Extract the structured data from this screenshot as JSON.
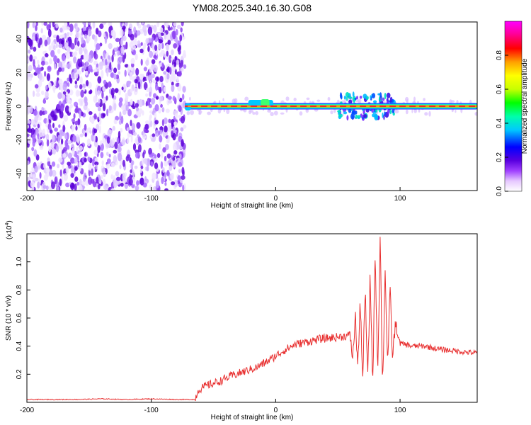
{
  "title": "YM08.2025.340.16.30.G08",
  "chart_data": [
    {
      "type": "heatmap",
      "title": "YM08.2025.340.16.30.G08",
      "xlabel": "Height of straight line (km)",
      "ylabel": "Frequency (Hz)",
      "xlim": [
        -200,
        162
      ],
      "ylim": [
        -50,
        50
      ],
      "x_ticks": [
        "-200",
        "-100",
        "0",
        "100"
      ],
      "x_tick_values": [
        -200,
        -100,
        0,
        100
      ],
      "y_ticks": [
        "-40",
        "-20",
        "0",
        "20",
        "40"
      ],
      "y_tick_values": [
        -40,
        -20,
        0,
        20,
        40
      ],
      "noise_region_x": [
        -200,
        -73
      ],
      "signal_line_frequency": 0,
      "signal_start_x": -73,
      "colorbar": {
        "label": "Normalized spectral amplitude",
        "range": [
          0,
          1
        ],
        "ticks": [
          "0.0",
          "0.2",
          "0.4",
          "0.6",
          "0.8"
        ],
        "tick_values": [
          0.0,
          0.2,
          0.4,
          0.6,
          0.8
        ],
        "colors": [
          "#ffffff",
          "#e6c8ff",
          "#a040ff",
          "#5a00e0",
          "#0000ff",
          "#00c8ff",
          "#00ffaa",
          "#00ff00",
          "#c8ff00",
          "#ffff00",
          "#ffa000",
          "#ff0000",
          "#ff00a0",
          "#ff00ff"
        ]
      }
    },
    {
      "type": "line",
      "xlabel": "Height of straight line (km)",
      "ylabel": "SNR (10 * v/v)",
      "y_multiplier": "(x10",
      "y_multiplier_exp": "4",
      "y_multiplier_close": ")",
      "xlim": [
        -200,
        162
      ],
      "ylim": [
        0,
        1.2
      ],
      "x_ticks": [
        "-200",
        "-100",
        "0",
        "100"
      ],
      "x_tick_values": [
        -200,
        -100,
        0,
        100
      ],
      "y_ticks": [
        "0.2",
        "0.4",
        "0.6",
        "0.8",
        "1.0"
      ],
      "y_tick_values": [
        0.2,
        0.4,
        0.6,
        0.8,
        1.0
      ],
      "line_color": "#e83030",
      "series": [
        {
          "name": "SNR",
          "x": [
            -200,
            -180,
            -160,
            -140,
            -120,
            -100,
            -80,
            -65,
            -62,
            -55,
            -45,
            -35,
            -25,
            -15,
            -5,
            5,
            15,
            25,
            35,
            45,
            55,
            60,
            62,
            64,
            66,
            68,
            70,
            72,
            74,
            76,
            78,
            80,
            82,
            84,
            86,
            88,
            90,
            92,
            94,
            96,
            100,
            110,
            120,
            130,
            140,
            150,
            162
          ],
          "values": [
            0.02,
            0.02,
            0.02,
            0.025,
            0.02,
            0.025,
            0.02,
            0.02,
            0.09,
            0.12,
            0.15,
            0.19,
            0.22,
            0.25,
            0.3,
            0.36,
            0.41,
            0.43,
            0.45,
            0.46,
            0.47,
            0.48,
            0.3,
            0.62,
            0.25,
            0.7,
            0.18,
            0.8,
            0.15,
            0.92,
            0.12,
            1.1,
            0.2,
            1.18,
            0.1,
            0.95,
            0.25,
            0.8,
            0.3,
            0.55,
            0.42,
            0.4,
            0.4,
            0.38,
            0.37,
            0.36,
            0.35
          ]
        }
      ]
    }
  ]
}
